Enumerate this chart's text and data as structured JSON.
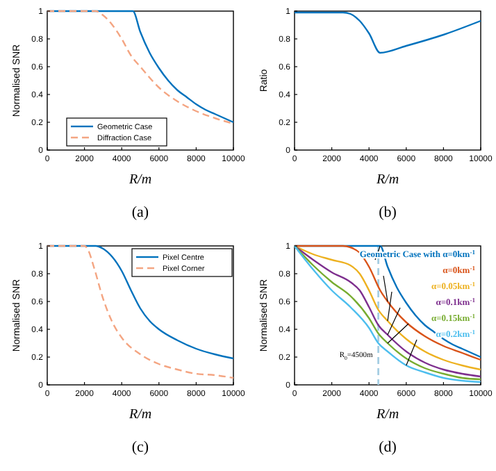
{
  "chart_data": [
    {
      "type": "line",
      "xlabel": "R/m",
      "ylabel": "Normalised SNR",
      "annotations": [
        "(a)"
      ],
      "xlim": [
        0,
        10000
      ],
      "ylim": [
        0,
        1
      ],
      "xticks": [
        0,
        2000,
        4000,
        6000,
        8000,
        10000
      ],
      "yticks": [
        0,
        0.2,
        0.4,
        0.6,
        0.8,
        1
      ],
      "legend": "bottom",
      "series": [
        {
          "name": "Geometric Case",
          "color": "#0072bd",
          "line_style": "solid",
          "x": [
            0,
            4600,
            5000,
            5500,
            6000,
            6500,
            7000,
            7500,
            8000,
            8500,
            9000,
            9500,
            10000
          ],
          "values": [
            1,
            1,
            0.85,
            0.7,
            0.59,
            0.5,
            0.43,
            0.38,
            0.33,
            0.29,
            0.26,
            0.23,
            0.2
          ]
        },
        {
          "name": "Diffraction Case",
          "color": "#f4a582",
          "line_style": "dashed",
          "x": [
            0,
            2600,
            3000,
            3500,
            4000,
            4500,
            5000,
            6000,
            7000,
            8000,
            9000,
            10000
          ],
          "values": [
            1,
            1,
            0.97,
            0.9,
            0.8,
            0.68,
            0.6,
            0.45,
            0.35,
            0.28,
            0.23,
            0.19
          ]
        }
      ]
    },
    {
      "type": "line",
      "xlabel": "R/m",
      "ylabel": "Ratio",
      "annotations": [
        "(b)"
      ],
      "xlim": [
        0,
        10000
      ],
      "ylim": [
        0,
        1
      ],
      "xticks": [
        0,
        2000,
        4000,
        6000,
        8000,
        10000
      ],
      "yticks": [
        0,
        0.2,
        0.4,
        0.6,
        0.8,
        1
      ],
      "series": [
        {
          "color": "#0072bd",
          "line_style": "solid",
          "x": [
            0,
            2600,
            3000,
            3500,
            4000,
            4600,
            6000,
            8000,
            10000
          ],
          "values": [
            0.99,
            0.99,
            0.98,
            0.93,
            0.84,
            0.7,
            0.75,
            0.83,
            0.93
          ]
        }
      ]
    },
    {
      "type": "line",
      "xlabel": "R/m",
      "ylabel": "Normalised SNR",
      "annotations": [
        "(c)"
      ],
      "xlim": [
        0,
        10000
      ],
      "ylim": [
        0,
        1
      ],
      "xticks": [
        0,
        2000,
        4000,
        6000,
        8000,
        10000
      ],
      "yticks": [
        0,
        0.2,
        0.4,
        0.6,
        0.8,
        1
      ],
      "legend": "top right",
      "series": [
        {
          "name": "Pixel Centre",
          "color": "#0072bd",
          "line_style": "solid",
          "x": [
            0,
            2600,
            3000,
            3500,
            4000,
            4500,
            5000,
            5500,
            6000,
            7000,
            8000,
            9000,
            10000
          ],
          "values": [
            1,
            1,
            0.98,
            0.92,
            0.82,
            0.68,
            0.55,
            0.46,
            0.4,
            0.32,
            0.26,
            0.22,
            0.19
          ]
        },
        {
          "name": "Pixel Corner",
          "color": "#f4a582",
          "line_style": "dashed",
          "x": [
            0,
            2000,
            2200,
            2500,
            3000,
            3500,
            4000,
            5000,
            6000,
            7000,
            8000,
            9000,
            10000
          ],
          "values": [
            1,
            1,
            0.97,
            0.85,
            0.62,
            0.45,
            0.34,
            0.22,
            0.15,
            0.11,
            0.08,
            0.07,
            0.05
          ]
        }
      ]
    },
    {
      "type": "line",
      "xlabel": "R/m",
      "ylabel": "Normalised SNR",
      "annotations": [
        "(d)"
      ],
      "xlim": [
        0,
        10000
      ],
      "ylim": [
        0,
        1
      ],
      "xticks": [
        0,
        2000,
        4000,
        6000,
        8000,
        10000
      ],
      "yticks": [
        0,
        0.2,
        0.4,
        0.6,
        0.8,
        1
      ],
      "ref_lines": [
        {
          "axis": "x",
          "value": 4500,
          "label": "R$_{0}$=4500m",
          "color": "#a6cee3",
          "line_style": "dashed"
        }
      ],
      "series": [
        {
          "name": "Geometric Case with α=0km$^{-1}$",
          "color": "#0072bd",
          "line_style": "solid",
          "x": [
            0,
            4600,
            5000,
            5500,
            6000,
            6500,
            7000,
            7500,
            8000,
            8500,
            9000,
            9500,
            10000
          ],
          "values": [
            1,
            1,
            0.85,
            0.7,
            0.59,
            0.5,
            0.43,
            0.38,
            0.33,
            0.29,
            0.26,
            0.23,
            0.2
          ]
        },
        {
          "name": "α=0km$^{-1}$",
          "color": "#d95319",
          "line_style": "solid",
          "x": [
            0,
            2600,
            3000,
            3500,
            4000,
            4600,
            5000,
            6000,
            7000,
            8000,
            9000,
            10000
          ],
          "values": [
            1,
            1,
            0.99,
            0.95,
            0.85,
            0.68,
            0.6,
            0.45,
            0.35,
            0.28,
            0.23,
            0.18
          ]
        },
        {
          "name": "α=0.05km$^{-1}$",
          "color": "#edb120",
          "line_style": "solid",
          "x": [
            0,
            1000,
            2000,
            3000,
            3500,
            4000,
            4500,
            5000,
            6000,
            7000,
            8000,
            9000,
            10000
          ],
          "values": [
            1,
            0.94,
            0.9,
            0.86,
            0.8,
            0.68,
            0.54,
            0.46,
            0.33,
            0.24,
            0.18,
            0.14,
            0.11
          ]
        },
        {
          "name": "α=0.1km$^{-1}$",
          "color": "#7e2f8e",
          "line_style": "solid",
          "x": [
            0,
            1000,
            2000,
            3000,
            3500,
            4000,
            4500,
            5000,
            6000,
            7000,
            8000,
            9000,
            10000
          ],
          "values": [
            1,
            0.9,
            0.81,
            0.74,
            0.68,
            0.56,
            0.43,
            0.36,
            0.24,
            0.16,
            0.11,
            0.08,
            0.06
          ]
        },
        {
          "name": "α=0.15km$^{-1}$",
          "color": "#77ac30",
          "line_style": "solid",
          "x": [
            0,
            1000,
            2000,
            3000,
            4000,
            4500,
            5000,
            6000,
            7000,
            8000,
            9000,
            10000
          ],
          "values": [
            1,
            0.86,
            0.74,
            0.64,
            0.48,
            0.37,
            0.3,
            0.19,
            0.12,
            0.08,
            0.05,
            0.04
          ]
        },
        {
          "name": "α=0.2km$^{-1}$",
          "color": "#4dbeee",
          "line_style": "solid",
          "x": [
            0,
            1000,
            2000,
            3000,
            4000,
            4500,
            5000,
            6000,
            7000,
            8000,
            9000,
            10000
          ],
          "values": [
            1,
            0.83,
            0.68,
            0.56,
            0.41,
            0.3,
            0.24,
            0.14,
            0.09,
            0.05,
            0.03,
            0.02
          ]
        }
      ]
    }
  ]
}
